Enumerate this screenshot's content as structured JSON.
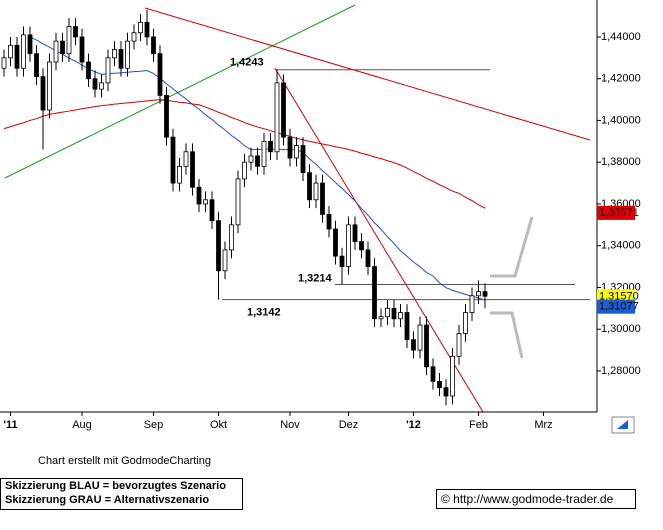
{
  "chart_data": {
    "type": "candlestick",
    "categories": [
      null,
      "'11",
      null,
      null,
      null,
      null,
      null,
      null,
      null,
      null,
      null,
      null,
      "Aug",
      null,
      null,
      null,
      null,
      null,
      null,
      null,
      null,
      null,
      null,
      "Sep",
      null,
      null,
      null,
      null,
      null,
      null,
      null,
      null,
      null,
      "Okt",
      null,
      null,
      null,
      null,
      null,
      null,
      null,
      null,
      null,
      null,
      "Nov",
      null,
      null,
      null,
      null,
      null,
      null,
      null,
      null,
      "Dez",
      null,
      null,
      null,
      null,
      null,
      null,
      null,
      null,
      null,
      "'12",
      null,
      null,
      null,
      null,
      null,
      null,
      null,
      null,
      null,
      "Feb",
      null,
      null,
      null,
      null,
      null,
      null,
      null,
      null,
      null,
      "Mrz",
      null,
      null,
      null,
      null,
      null,
      null,
      null
    ],
    "open": [
      1.425,
      1.43,
      1.436,
      1.425,
      1.441,
      1.432,
      1.421,
      1.405,
      1.428,
      1.438,
      1.432,
      1.445,
      1.44,
      1.428,
      1.42,
      1.415,
      1.418,
      1.43,
      1.434,
      1.425,
      1.438,
      1.442,
      1.447,
      1.44,
      1.432,
      1.412,
      1.392,
      1.37,
      1.378,
      1.385,
      1.368,
      1.36,
      1.362,
      1.352,
      1.328,
      1.338,
      1.35,
      1.372,
      1.38,
      1.383,
      1.378,
      1.39,
      1.385,
      1.418,
      1.392,
      1.382,
      1.388,
      1.375,
      1.362,
      1.37,
      1.355,
      1.348,
      1.335,
      1.33,
      1.35,
      1.342,
      1.338,
      1.33,
      1.305,
      1.306,
      1.31,
      1.305,
      1.308,
      1.295,
      1.29,
      1.302,
      1.282,
      1.275,
      1.272,
      1.268,
      1.287,
      1.298,
      1.308,
      1.316,
      1.318,
      null,
      null,
      null,
      null,
      null,
      null,
      null,
      null,
      null,
      null,
      null,
      null,
      null,
      null,
      null,
      null
    ],
    "high": [
      1.434,
      1.44,
      1.44,
      1.445,
      1.445,
      1.436,
      1.425,
      1.432,
      1.442,
      1.442,
      1.449,
      1.449,
      1.444,
      1.432,
      1.424,
      1.422,
      1.434,
      1.438,
      1.438,
      1.442,
      1.446,
      1.451,
      1.453,
      1.444,
      1.436,
      1.416,
      1.396,
      1.382,
      1.389,
      1.389,
      1.372,
      1.366,
      1.366,
      1.356,
      1.342,
      1.354,
      1.376,
      1.384,
      1.387,
      1.387,
      1.394,
      1.394,
      1.4243,
      1.422,
      1.396,
      1.392,
      1.392,
      1.379,
      1.374,
      1.374,
      1.359,
      1.352,
      1.339,
      1.354,
      1.354,
      1.346,
      1.342,
      1.334,
      1.31,
      1.314,
      1.314,
      1.312,
      1.312,
      1.299,
      1.306,
      1.306,
      1.286,
      1.279,
      1.276,
      1.291,
      1.302,
      1.312,
      1.32,
      1.3234,
      1.322,
      null,
      null,
      null,
      null,
      null,
      null,
      null,
      null,
      null,
      null,
      null,
      null,
      null,
      null,
      null,
      null
    ],
    "low": [
      1.421,
      1.426,
      1.421,
      1.421,
      1.428,
      1.417,
      1.386,
      1.401,
      1.424,
      1.428,
      1.428,
      1.436,
      1.424,
      1.416,
      1.411,
      1.411,
      1.414,
      1.426,
      1.421,
      1.421,
      1.434,
      1.438,
      1.436,
      1.428,
      1.408,
      1.388,
      1.366,
      1.366,
      1.374,
      1.364,
      1.356,
      1.356,
      1.348,
      1.3142,
      1.324,
      1.334,
      1.346,
      1.368,
      1.376,
      1.374,
      1.374,
      1.381,
      1.381,
      1.388,
      1.378,
      1.378,
      1.371,
      1.358,
      1.358,
      1.351,
      1.344,
      1.331,
      1.3214,
      1.326,
      1.338,
      1.334,
      1.326,
      1.301,
      1.301,
      1.302,
      1.301,
      1.301,
      1.291,
      1.286,
      1.286,
      1.278,
      1.271,
      1.268,
      1.2635,
      1.264,
      1.283,
      1.294,
      1.304,
      1.312,
      1.31,
      null,
      null,
      null,
      null,
      null,
      null,
      null,
      null,
      null,
      null,
      null,
      null,
      null,
      null,
      null,
      null
    ],
    "close": [
      1.43,
      1.436,
      1.425,
      1.441,
      1.432,
      1.421,
      1.405,
      1.428,
      1.438,
      1.432,
      1.445,
      1.44,
      1.428,
      1.42,
      1.415,
      1.418,
      1.43,
      1.434,
      1.425,
      1.438,
      1.442,
      1.447,
      1.44,
      1.432,
      1.412,
      1.392,
      1.37,
      1.378,
      1.385,
      1.368,
      1.36,
      1.362,
      1.352,
      1.328,
      1.338,
      1.35,
      1.372,
      1.38,
      1.383,
      1.378,
      1.39,
      1.385,
      1.418,
      1.392,
      1.382,
      1.388,
      1.375,
      1.362,
      1.37,
      1.355,
      1.348,
      1.335,
      1.33,
      1.35,
      1.342,
      1.338,
      1.33,
      1.305,
      1.306,
      1.31,
      1.305,
      1.308,
      1.295,
      1.29,
      1.302,
      1.282,
      1.275,
      1.272,
      1.268,
      1.287,
      1.298,
      1.308,
      1.316,
      1.318,
      1.3158,
      null,
      null,
      null,
      null,
      null,
      null,
      null,
      null,
      null,
      null,
      null,
      null,
      null,
      null,
      null,
      null
    ],
    "up_color": "#ffffff",
    "down_color": "#000000",
    "series": [
      {
        "color": "#2a4fc0",
        "values": [
          null,
          null,
          null,
          null,
          1.44,
          1.4385,
          1.4367,
          1.4351,
          1.4333,
          1.4317,
          1.4299,
          1.4284,
          1.4265,
          1.4247,
          1.4233,
          1.4221,
          1.4223,
          1.4226,
          1.4228,
          1.4231,
          1.4234,
          1.4236,
          1.4239,
          1.4225,
          1.4202,
          1.4175,
          1.4152,
          1.4126,
          1.4103,
          1.4077,
          1.4054,
          1.4027,
          1.4005,
          1.3978,
          1.3955,
          1.3928,
          1.3906,
          1.3879,
          1.386,
          1.3861,
          1.3862,
          1.3863,
          1.3862,
          1.3861,
          1.386,
          1.3859,
          1.3847,
          1.3816,
          1.379,
          1.3759,
          1.3732,
          1.3702,
          1.3675,
          1.3644,
          1.3614,
          1.3578,
          1.3546,
          1.351,
          1.3479,
          1.3442,
          1.3411,
          1.3376,
          1.3349,
          1.3322,
          1.3299,
          1.3272,
          1.3255,
          1.3222,
          1.3199,
          1.3186,
          1.3177,
          1.3167,
          1.3158,
          1.3149,
          1.314,
          null,
          null,
          null,
          null,
          null,
          null,
          null,
          null,
          null,
          null,
          null,
          null,
          null,
          null,
          null,
          null
        ]
      },
      {
        "color": "#d40000",
        "values": [
          1.3961,
          1.397,
          1.398,
          1.3989,
          1.4,
          1.4009,
          1.402,
          1.4029,
          1.4035,
          1.404,
          1.4045,
          1.405,
          1.4056,
          1.4061,
          1.4066,
          1.4071,
          1.4074,
          1.4078,
          1.4081,
          1.4084,
          1.4087,
          1.409,
          1.4094,
          1.4097,
          1.41,
          1.4096,
          1.4092,
          1.4087,
          1.4084,
          1.4079,
          1.4075,
          1.4064,
          1.4052,
          1.4039,
          1.4028,
          1.4014,
          1.4003,
          1.399,
          1.3979,
          1.3969,
          1.396,
          1.3951,
          1.3942,
          1.3932,
          1.3924,
          1.3914,
          1.3907,
          1.39,
          1.3894,
          1.3887,
          1.3881,
          1.3874,
          1.3868,
          1.3861,
          1.3853,
          1.3843,
          1.3835,
          1.3825,
          1.3817,
          1.3807,
          1.3798,
          1.3786,
          1.3772,
          1.3755,
          1.374,
          1.3723,
          1.3709,
          1.3692,
          1.3678,
          1.3661,
          1.3651,
          1.3632,
          1.3616,
          1.3596,
          1.358,
          null,
          null,
          null,
          null,
          null,
          null,
          null,
          null,
          null,
          null,
          null,
          null,
          null,
          null,
          null,
          null
        ]
      }
    ],
    "levels": [
      {
        "value": 1.4243,
        "label": "1,4243"
      },
      {
        "value": 1.3214,
        "label": "1,3214"
      },
      {
        "value": 1.3142,
        "label": "1,3142"
      }
    ],
    "price_markers": [
      {
        "value": 1.35571,
        "label": "1,35571",
        "color": "#e00000"
      },
      {
        "value": 1.3157,
        "label": "1,31570",
        "color": "#ffff00"
      },
      {
        "value": 1.31077,
        "label": "1,31077",
        "color": "#1a5fd0"
      }
    ],
    "ylim": [
      1.2613,
      1.4577
    ],
    "yticks": [
      {
        "value": 1.28,
        "label": "1,28000"
      },
      {
        "value": 1.3,
        "label": "1,30000"
      },
      {
        "value": 1.32,
        "label": "1,32000"
      },
      {
        "value": 1.34,
        "label": "1,34000"
      },
      {
        "value": 1.36,
        "label": "1,36000"
      },
      {
        "value": 1.38,
        "label": "1,38000"
      },
      {
        "value": 1.4,
        "label": "1,40000"
      },
      {
        "value": 1.42,
        "label": "1,42000"
      },
      {
        "value": 1.44,
        "label": "1,44000"
      }
    ]
  },
  "footer": {
    "credit": "Chart erstellt mit GodmodeCharting",
    "note_blue": "Skizzierung BLAU = bevorzugtes Szenario",
    "note_gray": "Skizzierung GRAU = Alternativszenario",
    "copyright": "© http://www.godmode-trader.de"
  }
}
